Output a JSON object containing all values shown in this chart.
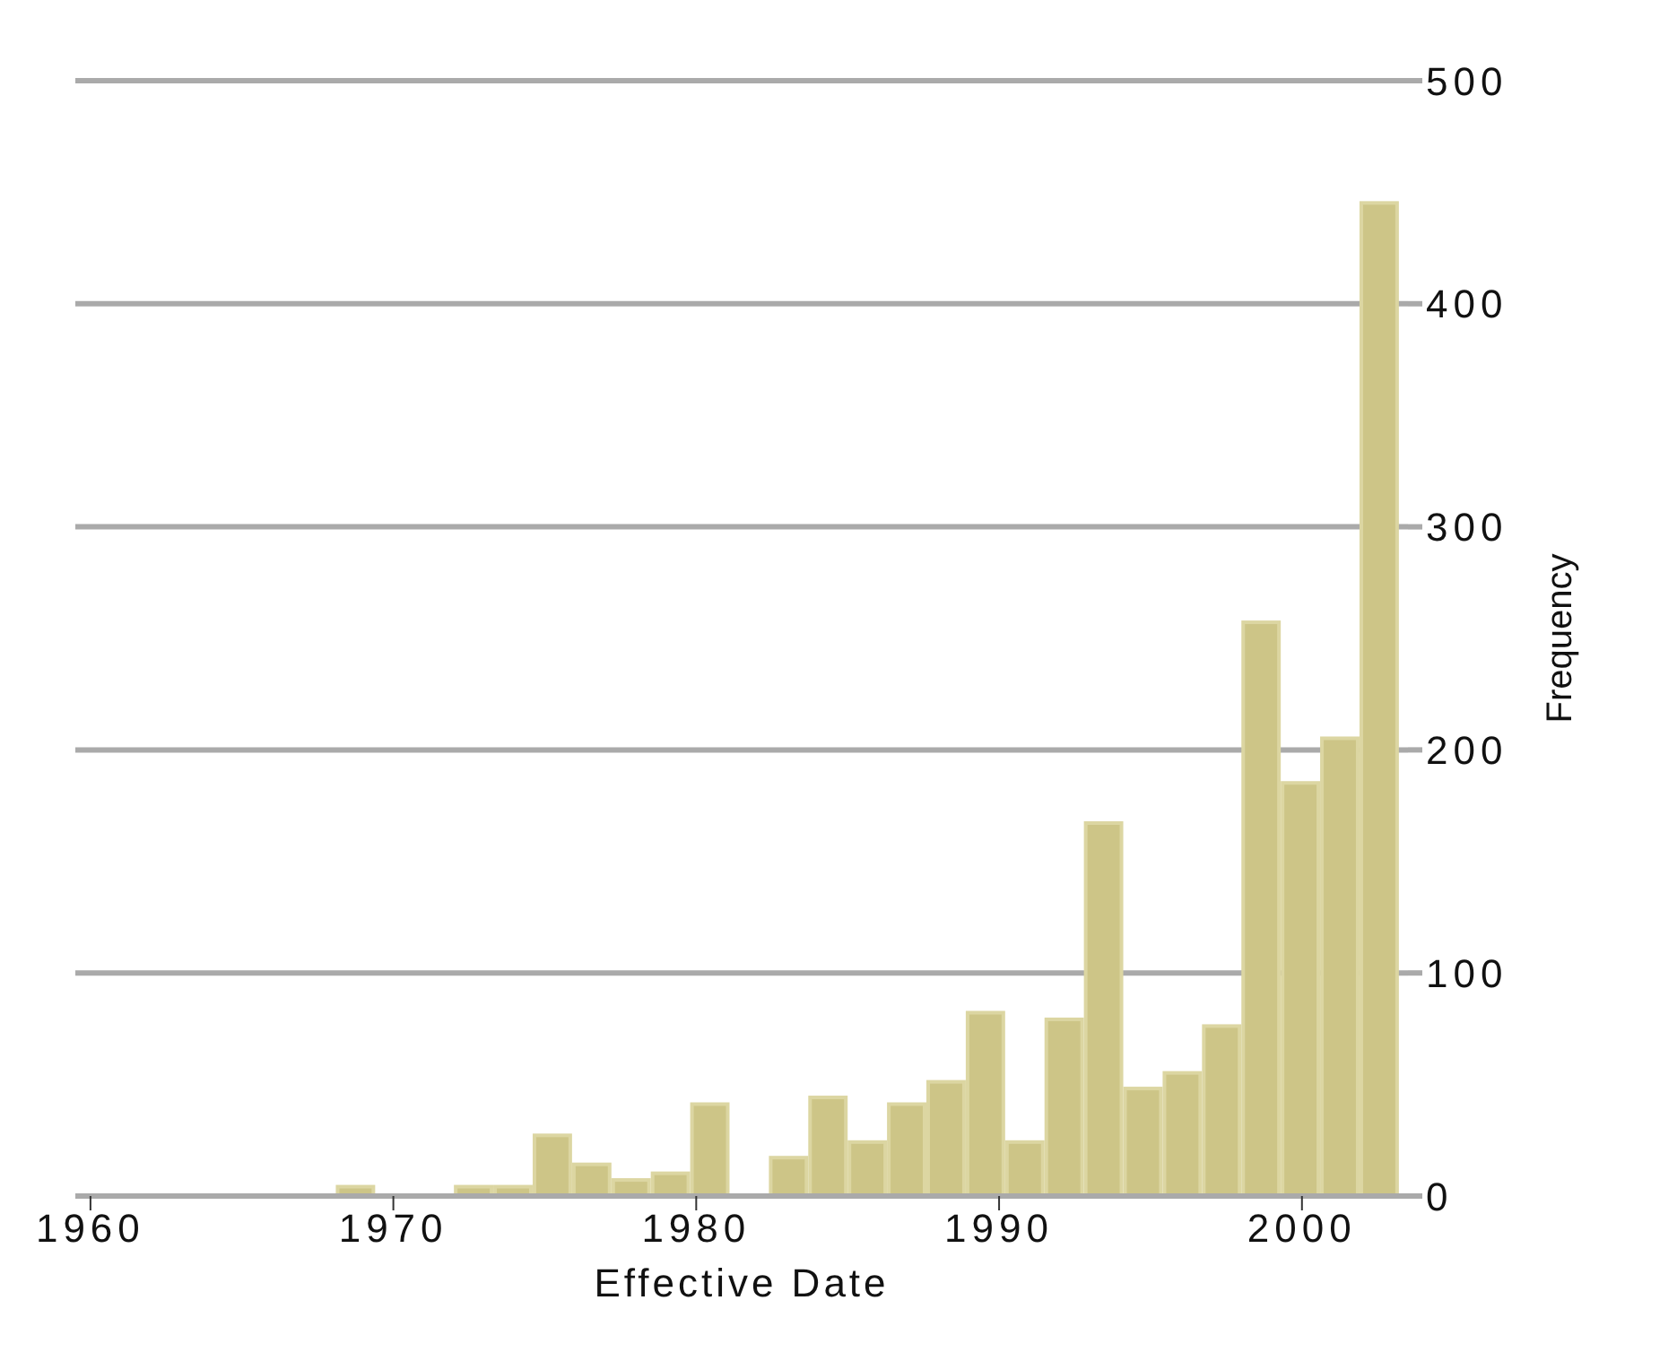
{
  "chart_data": {
    "type": "histogram",
    "xlabel": "Effective Date",
    "ylabel": "Frequency",
    "bins": [
      1968.1,
      1969.4,
      1970.7,
      1972.0,
      1973.3,
      1974.6,
      1975.9,
      1977.2,
      1978.5,
      1979.8,
      1981.1,
      1982.4,
      1983.7,
      1985.0,
      1986.3,
      1987.6,
      1988.9,
      1990.2,
      1991.5,
      1992.8,
      1994.1,
      1995.4,
      1996.7,
      1998.0,
      1999.3,
      2000.6,
      2001.9,
      2003.2
    ],
    "values": [
      5,
      0,
      0,
      5,
      5,
      28,
      15,
      8,
      11,
      42,
      0,
      18,
      45,
      25,
      42,
      52,
      83,
      25,
      80,
      168,
      49,
      56,
      77,
      258,
      186,
      206,
      446
    ],
    "color": "#cdc587",
    "xlim": [
      1959.5,
      2003.5
    ],
    "xticks": [
      1960,
      1970,
      1980,
      1990,
      2000
    ],
    "ylim": [
      0,
      500
    ],
    "yticks": [
      0,
      100,
      200,
      300,
      400,
      500
    ],
    "grid": "y"
  }
}
